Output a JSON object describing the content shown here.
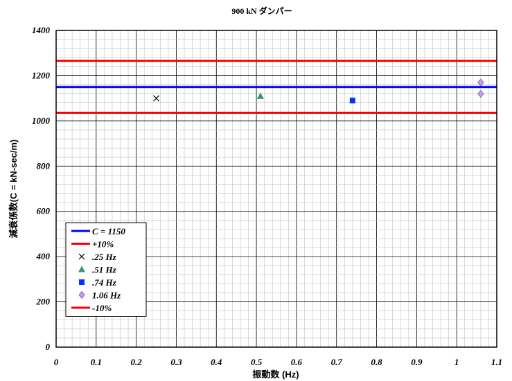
{
  "chart_data": {
    "type": "scatter",
    "title": "900 kN ダンパー",
    "xlabel": "振動数 (Hz)",
    "ylabel": "減衰係数(C = kN-sec/m)",
    "xlim": [
      0,
      1.1
    ],
    "ylim": [
      0,
      1400
    ],
    "x_ticks": [
      "0",
      "0.1",
      "0.2",
      "0.3",
      "0.4",
      "0.5",
      "0.6",
      "0.7",
      "0.8",
      "0.9",
      "1",
      "1.1"
    ],
    "y_ticks": [
      "0",
      "200",
      "400",
      "600",
      "800",
      "1000",
      "1200",
      "1400"
    ],
    "grid": true,
    "legend_position": "bottom-left",
    "reference_lines": [
      {
        "name": "C = 1150",
        "y": 1150,
        "color": "#0000ff"
      },
      {
        "name": "+10%",
        "y": 1265,
        "color": "#ff0000"
      },
      {
        "name": "-10%",
        "y": 1035,
        "color": "#ff0000"
      }
    ],
    "series": [
      {
        "name": ".25 Hz",
        "marker": "x",
        "color": "#000000",
        "points": [
          [
            0.25,
            1100
          ]
        ]
      },
      {
        "name": ".51 Hz",
        "marker": "triangle",
        "color": "#339966",
        "points": [
          [
            0.51,
            1110
          ]
        ]
      },
      {
        "name": ".74 Hz",
        "marker": "square",
        "color": "#0033ff",
        "points": [
          [
            0.74,
            1090
          ]
        ]
      },
      {
        "name": "1.06 Hz",
        "marker": "diamond",
        "color": "#cc99ff",
        "points": [
          [
            1.06,
            1170
          ],
          [
            1.06,
            1120
          ]
        ]
      }
    ],
    "legend_items": [
      {
        "label": "C = 1150",
        "kind": "line",
        "color": "#0000ff"
      },
      {
        "label": "+10%",
        "kind": "line",
        "color": "#ff0000"
      },
      {
        "label": ".25 Hz",
        "kind": "x",
        "color": "#000000"
      },
      {
        "label": ".51 Hz",
        "kind": "triangle",
        "color": "#339966"
      },
      {
        "label": ".74 Hz",
        "kind": "square",
        "color": "#0033ff"
      },
      {
        "label": "1.06 Hz",
        "kind": "diamond",
        "color": "#cc99ff"
      },
      {
        "label": "-10%",
        "kind": "line",
        "color": "#ff0000"
      }
    ]
  }
}
